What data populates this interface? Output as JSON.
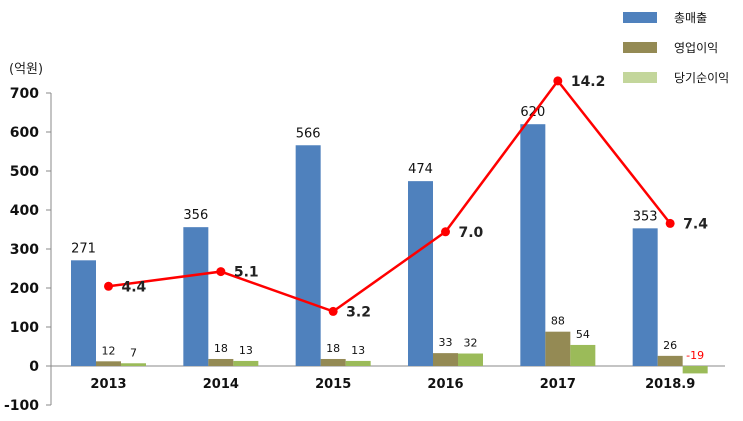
{
  "chart_data": {
    "type": "bar",
    "unit_label": "(억원)",
    "categories": [
      "2013",
      "2014",
      "2015",
      "2016",
      "2017",
      "2018.9"
    ],
    "ylim": [
      -100,
      700
    ],
    "yticks": [
      -100,
      0,
      100,
      200,
      300,
      400,
      500,
      600,
      700
    ],
    "series": [
      {
        "name": "총매출",
        "color": "#4F81BD",
        "values": [
          271,
          356,
          566,
          474,
          620,
          353
        ]
      },
      {
        "name": "영업이익",
        "color": "#948A54",
        "values": [
          12,
          18,
          18,
          33,
          88,
          26
        ]
      },
      {
        "name": "당기순이익",
        "color": "#9BBB59",
        "values": [
          7,
          13,
          13,
          32,
          54,
          -19
        ]
      }
    ],
    "line_series": {
      "color": "#FF0000",
      "values": [
        4.4,
        5.1,
        3.2,
        7.0,
        14.2,
        7.4
      ],
      "labels": [
        "4.4",
        "5.1",
        "3.2",
        "7.0",
        "14.2",
        "7.4"
      ]
    },
    "negative_label_color": "#FF0000"
  }
}
